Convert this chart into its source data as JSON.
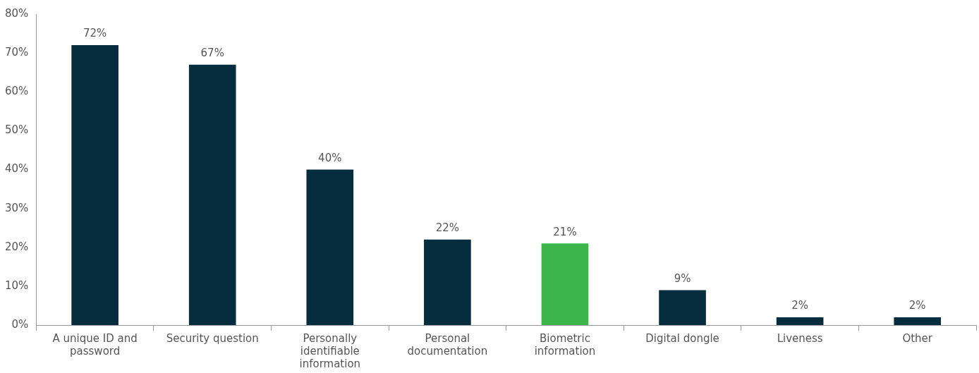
{
  "chart_data": {
    "type": "bar",
    "categories": [
      "A unique ID and password",
      "Security question",
      "Personally identifiable information",
      "Personal documentation",
      "Biometric information",
      "Digital dongle",
      "Liveness",
      "Other"
    ],
    "values": [
      72,
      67,
      40,
      22,
      21,
      9,
      2,
      2
    ],
    "colors": [
      "#052d3e",
      "#052d3e",
      "#052d3e",
      "#052d3e",
      "#3cb64a",
      "#052d3e",
      "#052d3e",
      "#052d3e"
    ],
    "value_labels": [
      "72%",
      "67%",
      "40%",
      "22%",
      "21%",
      "9%",
      "2%",
      "2%"
    ],
    "ylim": [
      0,
      80
    ],
    "yticks": [
      {
        "value": 0,
        "label": "0%"
      },
      {
        "value": 10,
        "label": "10%"
      },
      {
        "value": 20,
        "label": "20%"
      },
      {
        "value": 30,
        "label": "30%"
      },
      {
        "value": 40,
        "label": "40%"
      },
      {
        "value": 50,
        "label": "50%"
      },
      {
        "value": 60,
        "label": "60%"
      },
      {
        "value": 70,
        "label": "70%"
      },
      {
        "value": 80,
        "label": "80%"
      }
    ],
    "grid": false,
    "legend": false
  }
}
